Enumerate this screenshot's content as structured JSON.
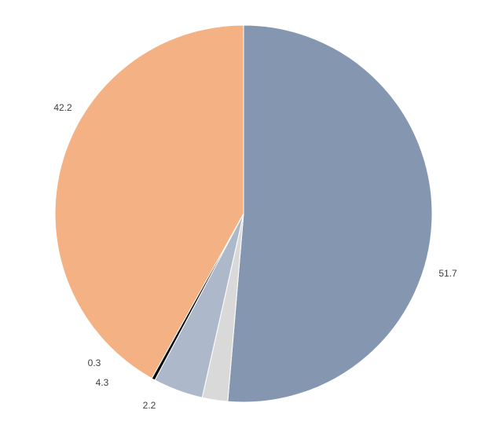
{
  "chart_data": {
    "type": "pie",
    "title": "",
    "legend": "none",
    "labels_position": "outside",
    "start_angle_deg": 0,
    "direction": "clockwise",
    "background": "#FFFFFF",
    "label_color": "#404040",
    "segments": [
      {
        "value": 51.7,
        "label": "51.7",
        "color": "#8496B0"
      },
      {
        "value": 2.2,
        "label": "2.2",
        "color": "#D9D9D9"
      },
      {
        "value": 4.3,
        "label": "4.3",
        "color": "#ADB9CA"
      },
      {
        "value": 0.3,
        "label": "0.3",
        "color": "#000000"
      },
      {
        "value": 42.2,
        "label": "42.2",
        "color": "#F4B183"
      }
    ]
  }
}
